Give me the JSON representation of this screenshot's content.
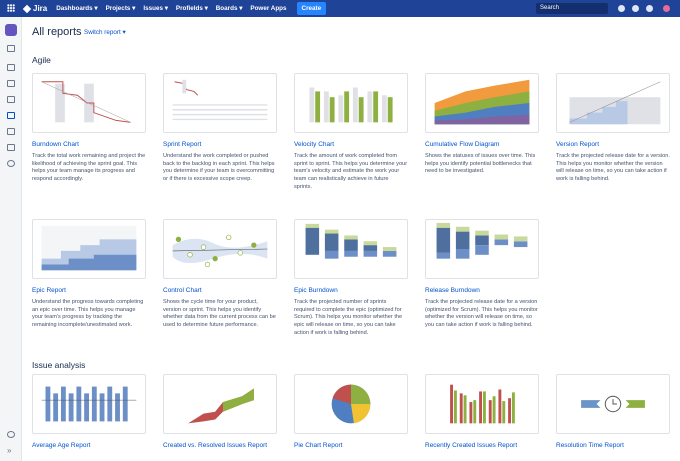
{
  "nav": {
    "product": "Jira",
    "items": [
      "Dashboards",
      "Projects",
      "Issues",
      "Profields",
      "Boards",
      "Power Apps"
    ],
    "create": "Create",
    "search": "Search"
  },
  "header": {
    "title": "All reports",
    "switch": "Switch report"
  },
  "sections": [
    {
      "title": "Agile",
      "cards": [
        {
          "title": "Burndown Chart",
          "description": "Track the total work remaining and project the likelihood of achieving the sprint goal. This helps your team manage its progress and respond accordingly."
        },
        {
          "title": "Sprint Report",
          "description": "Understand the work completed or pushed back to the backlog in each sprint. This helps you determine if your team is overcommitting or if there is excessive scope creep."
        },
        {
          "title": "Velocity Chart",
          "description": "Track the amount of work completed from sprint to sprint. This helps you determine your team's velocity and estimate the work your team can realistically achieve in future sprints."
        },
        {
          "title": "Cumulative Flow Diagram",
          "description": "Shows the statuses of issues over time. This helps you identify potential bottlenecks that need to be investigated."
        },
        {
          "title": "Version Report",
          "description": "Track the projected release date for a version. This helps you monitor whether the version will release on time, so you can take action if work is falling behind."
        },
        {
          "title": "Epic Report",
          "description": "Understand the progress towards completing an epic over time. This helps you manage your team's progress by tracking the remaining incomplete/unestimated work."
        },
        {
          "title": "Control Chart",
          "description": "Shows the cycle time for your product, version or sprint. This helps you identify whether data from the current process can be used to determine future performance."
        },
        {
          "title": "Epic Burndown",
          "description": "Track the projected number of sprints required to complete the epic (optimized for Scrum). This helps you monitor whether the epic will release on time, so you can take action if work is falling behind."
        },
        {
          "title": "Release Burndown",
          "description": "Track the projected release date for a version (optimized for Scrum). This helps you monitor whether the version will release on time, so you can take action if work is falling behind."
        }
      ]
    },
    {
      "title": "Issue analysis",
      "cards": [
        {
          "title": "Average Age Report"
        },
        {
          "title": "Created vs. Resolved Issues Report"
        },
        {
          "title": "Pie Chart Report"
        },
        {
          "title": "Recently Created Issues Report"
        },
        {
          "title": "Resolution Time Report"
        }
      ]
    }
  ]
}
